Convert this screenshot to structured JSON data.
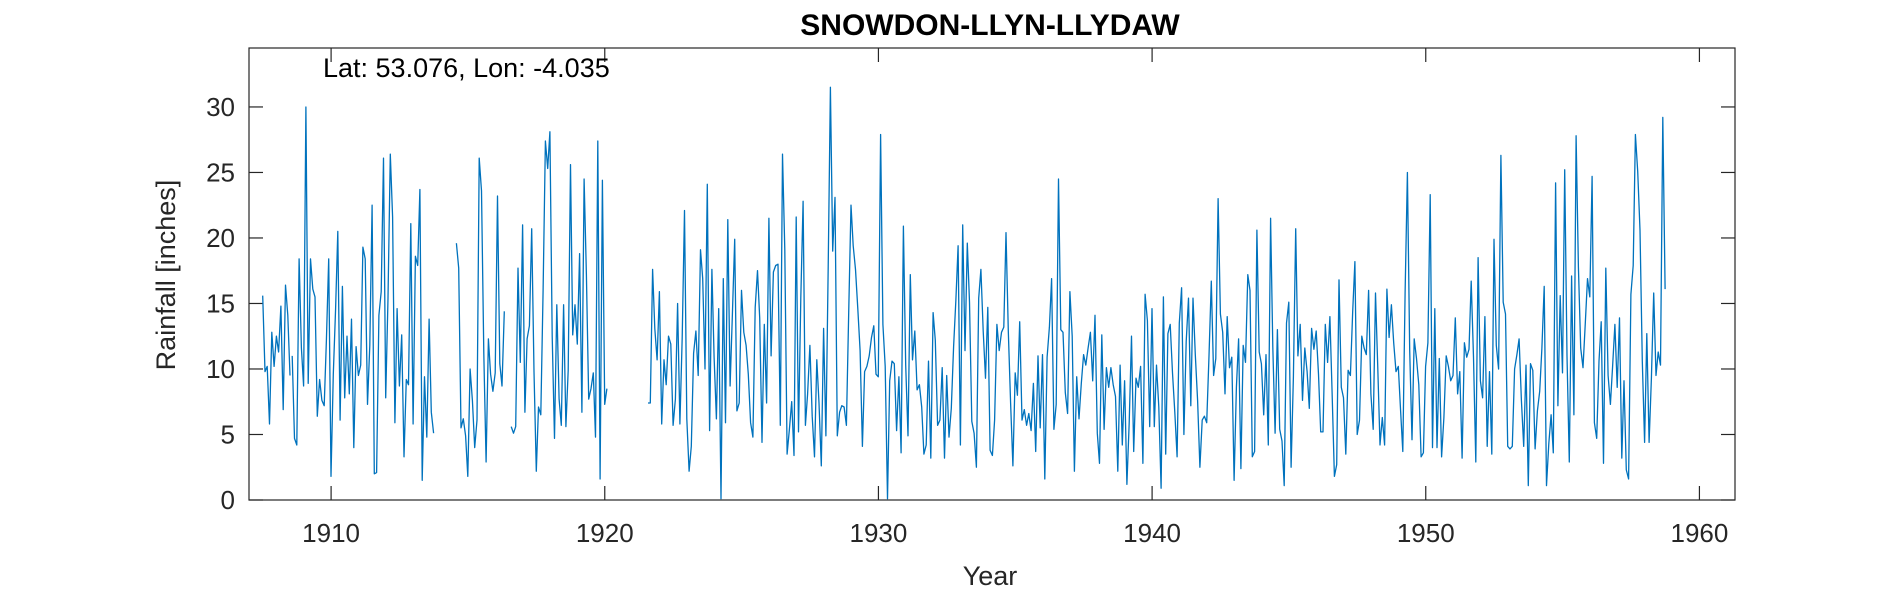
{
  "chart_data": {
    "type": "line",
    "title": "SNOWDON-LLYN-LLYDAW",
    "annotation": "Lat: 53.076, Lon: -4.035",
    "xlabel": "Year",
    "ylabel": "Rainfall [inches]",
    "xlim": [
      1907.0,
      1961.3
    ],
    "ylim": [
      0,
      34.5
    ],
    "xticks": [
      1910,
      1920,
      1930,
      1940,
      1950,
      1960
    ],
    "yticks": [
      0,
      5,
      10,
      15,
      20,
      25,
      30
    ],
    "grid": false,
    "legend": "none",
    "series_color": "#0072bd",
    "series": [
      {
        "segments": [
          {
            "x0": 1907.5,
            "dx": 0.08333,
            "values": [
              15.6,
              9.8,
              10.2,
              5.8,
              12.8,
              10.2,
              12.5,
              11.3,
              14.8,
              6.9,
              16.4,
              14.1,
              9.5
            ]
          },
          {
            "x0": 1908.58,
            "dx": 0.08333,
            "values": [
              11.0,
              4.7,
              4.2,
              18.4,
              11.6,
              8.7,
              30.0,
              8.9,
              18.4,
              16.1,
              15.5,
              6.4,
              9.2,
              7.6,
              7.2,
              12.2,
              18.4,
              1.8,
              9.6,
              14.6,
              20.5,
              6.1,
              16.3,
              7.8,
              12.5,
              8.1,
              13.8,
              4.0,
              11.7,
              9.5,
              10.3,
              19.3,
              18.4,
              7.3,
              11.8,
              22.5,
              2.0,
              2.1,
              14.1,
              15.9,
              26.1,
              7.8,
              15.4,
              26.4,
              21.6,
              5.9,
              14.6,
              8.7,
              12.6,
              3.3,
              9.2,
              8.8,
              21.1,
              5.8,
              18.6,
              17.9,
              23.7,
              1.5,
              9.4,
              4.8,
              13.8,
              6.7,
              5.1
            ]
          },
          {
            "x0": 1914.58,
            "dx": 0.08333,
            "values": [
              19.6,
              17.7,
              5.5,
              6.2,
              4.9,
              1.8,
              10.0,
              7.6,
              4.0,
              6.1,
              26.1,
              23.6,
              11.2,
              2.9,
              12.3,
              9.6,
              8.3,
              9.7,
              23.2,
              10.4,
              8.7,
              14.4
            ]
          },
          {
            "x0": 1916.58,
            "dx": 0.08333,
            "values": [
              5.6,
              5.1,
              5.6,
              17.7,
              10.5,
              21.0,
              6.7,
              12.3,
              13.3,
              20.7,
              9.8,
              2.2,
              7.1,
              6.5,
              16.0,
              27.4,
              25.3,
              28.1,
              12.5,
              4.7,
              14.9,
              7.7,
              5.7,
              14.9,
              5.6,
              9.9,
              25.6,
              12.6,
              14.9,
              11.9,
              18.8,
              6.7,
              24.5,
              17.2,
              7.7,
              8.5,
              9.7,
              4.8,
              27.4,
              1.6,
              24.4,
              7.3,
              8.5
            ]
          },
          {
            "x0": 1921.58,
            "dx": 0.08333,
            "values": [
              7.4,
              7.4,
              17.6,
              13.1,
              10.7,
              15.9,
              5.8,
              10.7,
              8.8,
              12.5,
              11.9,
              5.7,
              7.7,
              15.0,
              5.8,
              12.4,
              22.1,
              6.2,
              2.2,
              4.1,
              11.2,
              12.9,
              9.5,
              19.1,
              16.9,
              10.0,
              24.1,
              5.3,
              17.6,
              10.9,
              6.2,
              14.6,
              0.1,
              16.9,
              5.9,
              21.4,
              8.7,
              14.2,
              19.9,
              6.8,
              7.4,
              16.0,
              12.8,
              11.8,
              9.6,
              5.9,
              4.8,
              14.7,
              17.5,
              13.9,
              4.4,
              13.4,
              7.4,
              21.5,
              11.0,
              17.4,
              17.9,
              18.0,
              5.7,
              26.4,
              19.1,
              3.5,
              5.4,
              7.5,
              3.4,
              21.6,
              5.2,
              15.4,
              22.8,
              5.7,
              8.1,
              11.8,
              6.4,
              3.3,
              10.7,
              7.4,
              2.6,
              13.1,
              4.9,
              17.8,
              31.5,
              19.0,
              23.1,
              4.9,
              6.7,
              7.2,
              7.1,
              5.7,
              14.3,
              22.5,
              19.4,
              17.6,
              14.6,
              11.4,
              4.1,
              9.8,
              10.2,
              11.0,
              12.4,
              13.3,
              9.6,
              9.4,
              27.9,
              13.4,
              10.2,
              0.1,
              9.1,
              10.6,
              10.4,
              5.3,
              9.4,
              3.6,
              20.9,
              10.3,
              4.9,
              17.2,
              10.7,
              12.9,
              8.4,
              8.8,
              7.1,
              3.5,
              4.2,
              10.6,
              3.2,
              14.3,
              12.2,
              5.7,
              6.1,
              10.1,
              3.2,
              9.5,
              4.8,
              7.0,
              11.7,
              15.3,
              19.4,
              4.2,
              21.0,
              11.4,
              19.6,
              15.1,
              6.0,
              5.1,
              2.5,
              15.4,
              17.6,
              12.9,
              9.3,
              14.7,
              3.8,
              3.4,
              6.1,
              13.4,
              11.4,
              12.8,
              13.2,
              20.4,
              12.9,
              7.4,
              2.6,
              9.7,
              8.0,
              13.6,
              6.1,
              6.9,
              5.7,
              6.6,
              5.3,
              8.9,
              3.7,
              11.0,
              5.5,
              11.1,
              1.6,
              10.9,
              13.2,
              16.9,
              5.4,
              7.3,
              24.5,
              13.0,
              12.8,
              8.2,
              6.6,
              15.9,
              12.5,
              2.2,
              9.4,
              6.2,
              8.9,
              11.1,
              10.3,
              11.6,
              12.8,
              9.1,
              14.1,
              5.1,
              2.8,
              12.6,
              5.4,
              10.1,
              8.6,
              10.1,
              8.8,
              7.9,
              2.2,
              10.3,
              4.2,
              9.1,
              1.2,
              5.9,
              12.5,
              3.7,
              9.3,
              8.6,
              10.2,
              2.8,
              15.7,
              13.7,
              5.6,
              14.6,
              5.6,
              10.3,
              7.1,
              0.9,
              15.5,
              3.5,
              12.7,
              13.4,
              9.7,
              6.7,
              3.3,
              13.5,
              16.2,
              5.0,
              12.1,
              15.4,
              7.2,
              15.4,
              11.1,
              7.6,
              2.5,
              6.1,
              6.4,
              5.9,
              11.0,
              16.7,
              9.5,
              10.8,
              23.0,
              14.2,
              12.8,
              8.1,
              14.0,
              10.1,
              10.9,
              1.5,
              8.6,
              12.3,
              2.4,
              11.8,
              10.5,
              17.2,
              16.0,
              3.3,
              3.7,
              20.6,
              11.3,
              10.4,
              6.5,
              11.1,
              4.2,
              21.5,
              11.7,
              5.1,
              13.0,
              5.4,
              4.5,
              1.1,
              13.5,
              15.1,
              2.5,
              9.4,
              20.7,
              11.0,
              13.4,
              7.6,
              11.6,
              9.8,
              7.0,
              13.1,
              11.5,
              12.9,
              9.6,
              5.2,
              5.2,
              13.4,
              10.5,
              14.0,
              8.2,
              1.8,
              2.7,
              16.8,
              8.6,
              7.8,
              3.5,
              9.9,
              9.5,
              14.4,
              18.2,
              5.0,
              6.1,
              12.5,
              11.6,
              11.1,
              16.0,
              8.1,
              5.4,
              15.8,
              10.3,
              4.2,
              6.3,
              4.2,
              16.1,
              12.4,
              14.9,
              12.0,
              9.8,
              10.2,
              6.8,
              3.7,
              15.8,
              25.0,
              11.4,
              4.6,
              12.3,
              10.8,
              8.8,
              3.3,
              3.6,
              10.2,
              12.0,
              23.3,
              4.0,
              14.6,
              4.0,
              10.8,
              3.3,
              6.3,
              11.0,
              10.2,
              9.1,
              9.5,
              13.9,
              8.1,
              9.8,
              3.2,
              12.0,
              10.9,
              11.5,
              16.7,
              10.9,
              2.9,
              18.5,
              9.1,
              7.8,
              14.0,
              4.1,
              9.8,
              3.5,
              19.9,
              11.8,
              10.0,
              26.3,
              15.1,
              14.2,
              4.1,
              3.9,
              4.1,
              10.0,
              11.1,
              12.3,
              7.6,
              4.1,
              10.3,
              1.1,
              10.4,
              9.9,
              3.9,
              6.8,
              8.3,
              11.6,
              16.3,
              1.1,
              4.3,
              6.5,
              3.6,
              24.2,
              7.2,
              15.6,
              9.7,
              25.2,
              11.0,
              2.9,
              17.1,
              6.5,
              27.8,
              17.8,
              11.6,
              10.1,
              13.5,
              16.9,
              15.5,
              24.7,
              5.9,
              4.7,
              10.6,
              13.6,
              2.8,
              17.7,
              9.5,
              7.3,
              10.2,
              13.4,
              8.6,
              13.9,
              3.2,
              9.1,
              2.3,
              1.6,
              15.7,
              17.9,
              27.9,
              25.1,
              20.6,
              10.6,
              4.4,
              12.7,
              4.4,
              9.3,
              15.8,
              9.5,
              11.3,
              10.3,
              29.2,
              16.1
            ]
          }
        ]
      }
    ]
  }
}
